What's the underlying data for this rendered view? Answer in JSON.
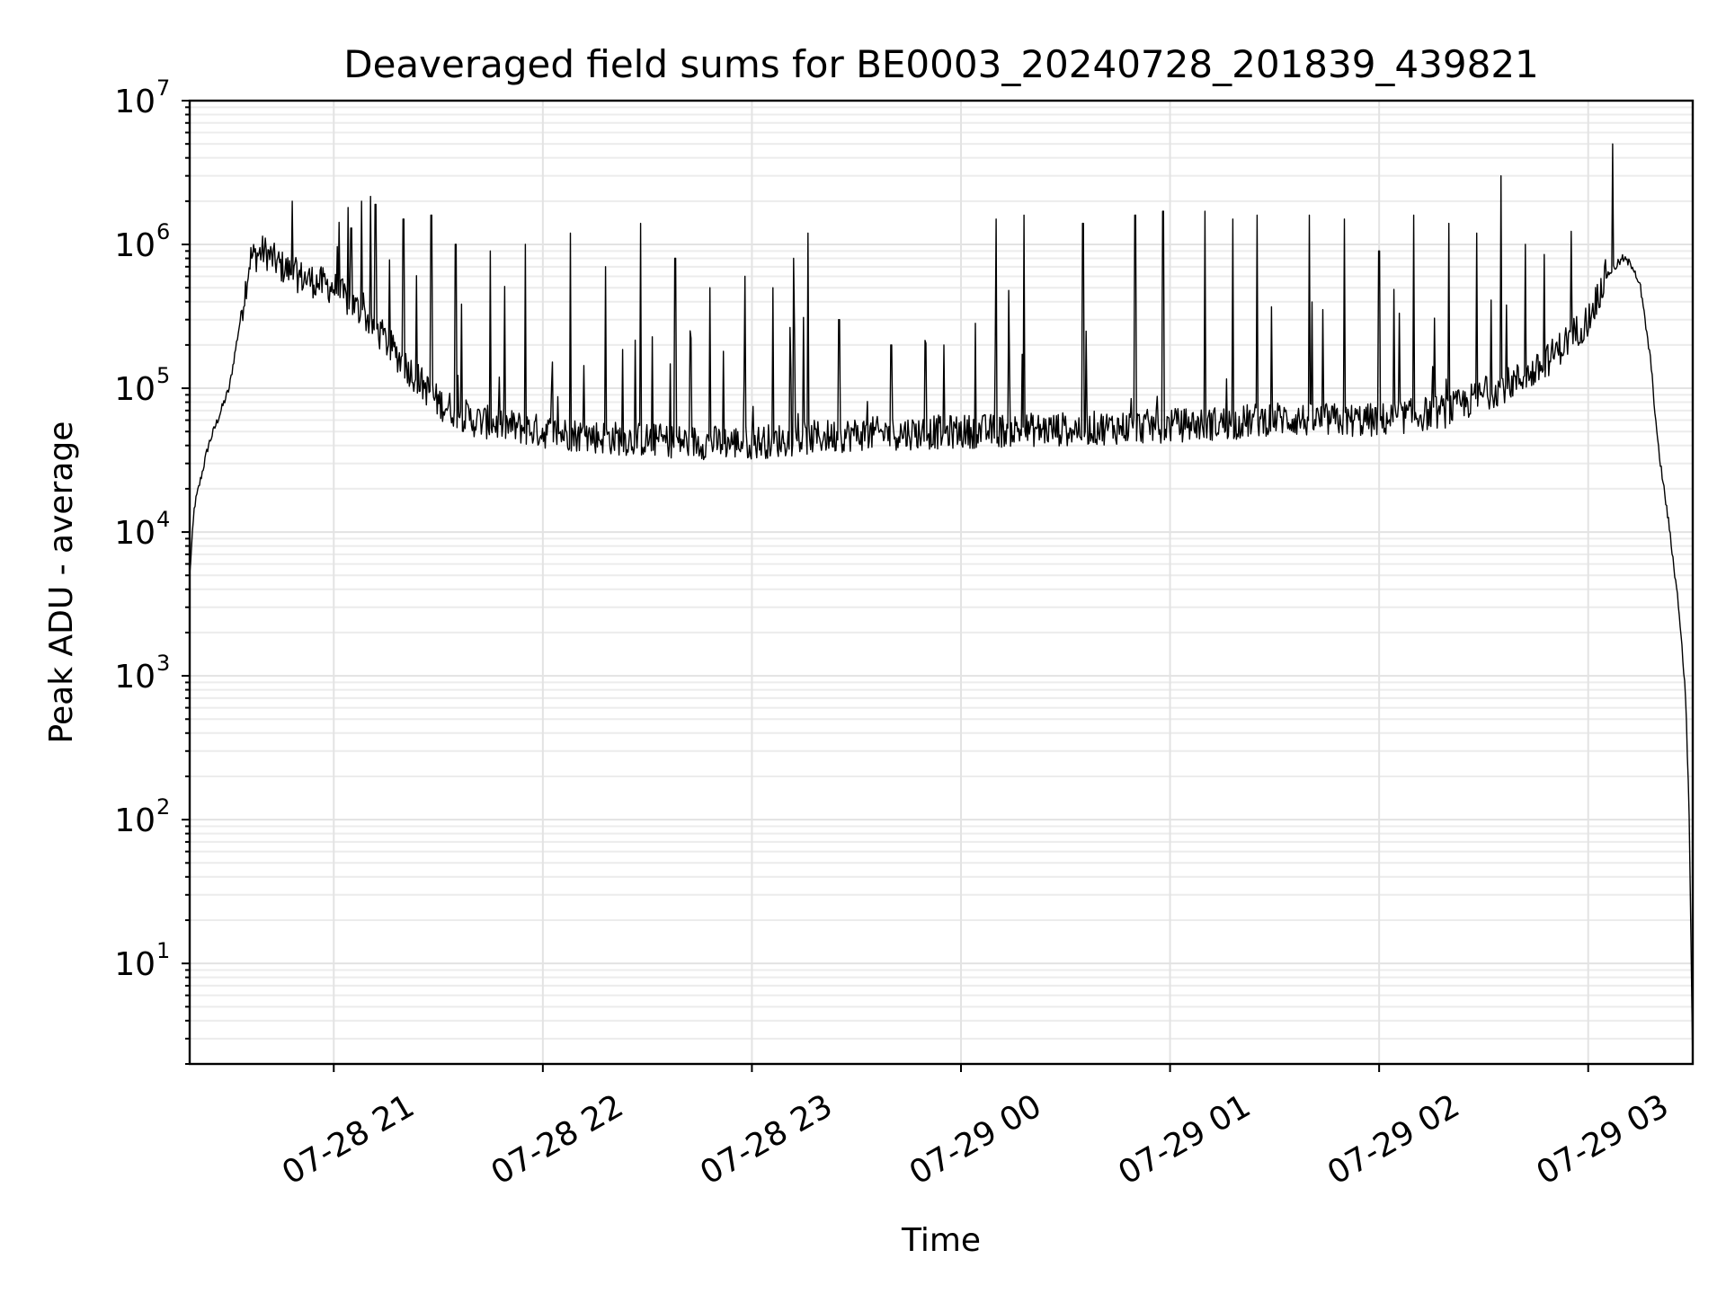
{
  "chart_data": {
    "type": "line",
    "title": "Deaveraged field sums for BE0003_20240728_201839_439821",
    "xlabel": "Time",
    "ylabel": "Peak ADU - average",
    "yscale": "log",
    "ylim": [
      2,
      10000000
    ],
    "xlim": [
      "2024-07-28 20:18:39",
      "2024-07-29 03:30:00"
    ],
    "grid": true,
    "x_ticks": [
      {
        "t": "2024-07-28 21:00",
        "label": "07-28 21"
      },
      {
        "t": "2024-07-28 22:00",
        "label": "07-28 22"
      },
      {
        "t": "2024-07-28 23:00",
        "label": "07-28 23"
      },
      {
        "t": "2024-07-29 00:00",
        "label": "07-29 00"
      },
      {
        "t": "2024-07-29 01:00",
        "label": "07-29 01"
      },
      {
        "t": "2024-07-29 02:00",
        "label": "07-29 02"
      },
      {
        "t": "2024-07-29 03:00",
        "label": "07-29 03"
      }
    ],
    "y_ticks": [
      {
        "value": 10,
        "base": "10",
        "exp": "1"
      },
      {
        "value": 100,
        "base": "10",
        "exp": "2"
      },
      {
        "value": 1000,
        "base": "10",
        "exp": "3"
      },
      {
        "value": 10000,
        "base": "10",
        "exp": "4"
      },
      {
        "value": 100000,
        "base": "10",
        "exp": "5"
      },
      {
        "value": 1000000,
        "base": "10",
        "exp": "6"
      },
      {
        "value": 10000000,
        "base": "10",
        "exp": "7"
      }
    ],
    "series": [
      {
        "color": "#000000",
        "baseline": {
          "x": [
            "2024-07-28 20:18:39",
            "2024-07-28 20:20",
            "2024-07-28 20:24",
            "2024-07-28 20:30",
            "2024-07-28 20:36",
            "2024-07-28 20:40",
            "2024-07-28 20:45",
            "2024-07-28 20:50",
            "2024-07-28 21:00",
            "2024-07-28 21:10",
            "2024-07-28 21:20",
            "2024-07-28 21:30",
            "2024-07-28 21:40",
            "2024-07-28 22:00",
            "2024-07-28 22:20",
            "2024-07-28 22:45",
            "2024-07-28 23:00",
            "2024-07-28 23:30",
            "2024-07-29 00:00",
            "2024-07-29 00:30",
            "2024-07-29 01:00",
            "2024-07-29 01:20",
            "2024-07-29 01:30",
            "2024-07-29 01:40",
            "2024-07-29 02:00",
            "2024-07-29 02:20",
            "2024-07-29 02:30",
            "2024-07-29 02:45",
            "2024-07-29 03:00",
            "2024-07-29 03:05",
            "2024-07-29 03:10",
            "2024-07-29 03:13",
            "2024-07-29 03:15",
            "2024-07-29 03:18",
            "2024-07-29 03:20",
            "2024-07-29 03:23",
            "2024-07-29 03:26",
            "2024-07-29 03:28",
            "2024-07-29 03:29",
            "2024-07-29 03:30"
          ],
          "y": [
            5000,
            15000,
            40000,
            100000,
            800000,
            900000,
            700000,
            600000,
            500000,
            300000,
            150000,
            80000,
            60000,
            50000,
            45000,
            42000,
            42000,
            48000,
            50000,
            52000,
            55000,
            58000,
            62000,
            60000,
            60000,
            70000,
            90000,
            130000,
            300000,
            600000,
            800000,
            700000,
            500000,
            150000,
            40000,
            12000,
            3000,
            700,
            100,
            2
          ]
        },
        "spikes": [
          {
            "t": "2024-07-28 20:33",
            "v": 200000
          },
          {
            "t": "2024-07-28 20:48",
            "v": 2000000
          },
          {
            "t": "2024-07-28 21:05",
            "v": 1300000
          },
          {
            "t": "2024-07-28 21:08",
            "v": 2000000
          },
          {
            "t": "2024-07-28 21:12",
            "v": 1900000
          },
          {
            "t": "2024-07-28 21:20",
            "v": 1500000
          },
          {
            "t": "2024-07-28 21:28",
            "v": 1600000
          },
          {
            "t": "2024-07-28 21:35",
            "v": 1000000
          },
          {
            "t": "2024-07-28 21:45",
            "v": 900000
          },
          {
            "t": "2024-07-28 21:55",
            "v": 1000000
          },
          {
            "t": "2024-07-28 22:08",
            "v": 1200000
          },
          {
            "t": "2024-07-28 22:18",
            "v": 700000
          },
          {
            "t": "2024-07-28 22:28",
            "v": 1400000
          },
          {
            "t": "2024-07-28 22:38",
            "v": 800000
          },
          {
            "t": "2024-07-28 22:48",
            "v": 500000
          },
          {
            "t": "2024-07-28 22:58",
            "v": 600000
          },
          {
            "t": "2024-07-28 23:06",
            "v": 500000
          },
          {
            "t": "2024-07-28 23:12",
            "v": 800000
          },
          {
            "t": "2024-07-28 23:16",
            "v": 1200000
          },
          {
            "t": "2024-07-28 23:25",
            "v": 300000
          },
          {
            "t": "2024-07-28 23:40",
            "v": 200000
          },
          {
            "t": "2024-07-28 23:55",
            "v": 200000
          },
          {
            "t": "2024-07-29 00:10",
            "v": 1500000
          },
          {
            "t": "2024-07-29 00:18",
            "v": 1600000
          },
          {
            "t": "2024-07-29 00:35",
            "v": 1400000
          },
          {
            "t": "2024-07-29 00:50",
            "v": 1600000
          },
          {
            "t": "2024-07-29 00:58",
            "v": 1700000
          },
          {
            "t": "2024-07-29 01:10",
            "v": 1700000
          },
          {
            "t": "2024-07-29 01:18",
            "v": 1500000
          },
          {
            "t": "2024-07-29 01:25",
            "v": 1600000
          },
          {
            "t": "2024-07-29 01:40",
            "v": 1600000
          },
          {
            "t": "2024-07-29 01:50",
            "v": 1500000
          },
          {
            "t": "2024-07-29 02:00",
            "v": 900000
          },
          {
            "t": "2024-07-29 02:10",
            "v": 1600000
          },
          {
            "t": "2024-07-29 02:20",
            "v": 1400000
          },
          {
            "t": "2024-07-29 02:28",
            "v": 1200000
          },
          {
            "t": "2024-07-29 02:35",
            "v": 3000000
          },
          {
            "t": "2024-07-29 02:42",
            "v": 1000000
          },
          {
            "t": "2024-07-29 03:07",
            "v": 5000000
          }
        ]
      }
    ]
  }
}
